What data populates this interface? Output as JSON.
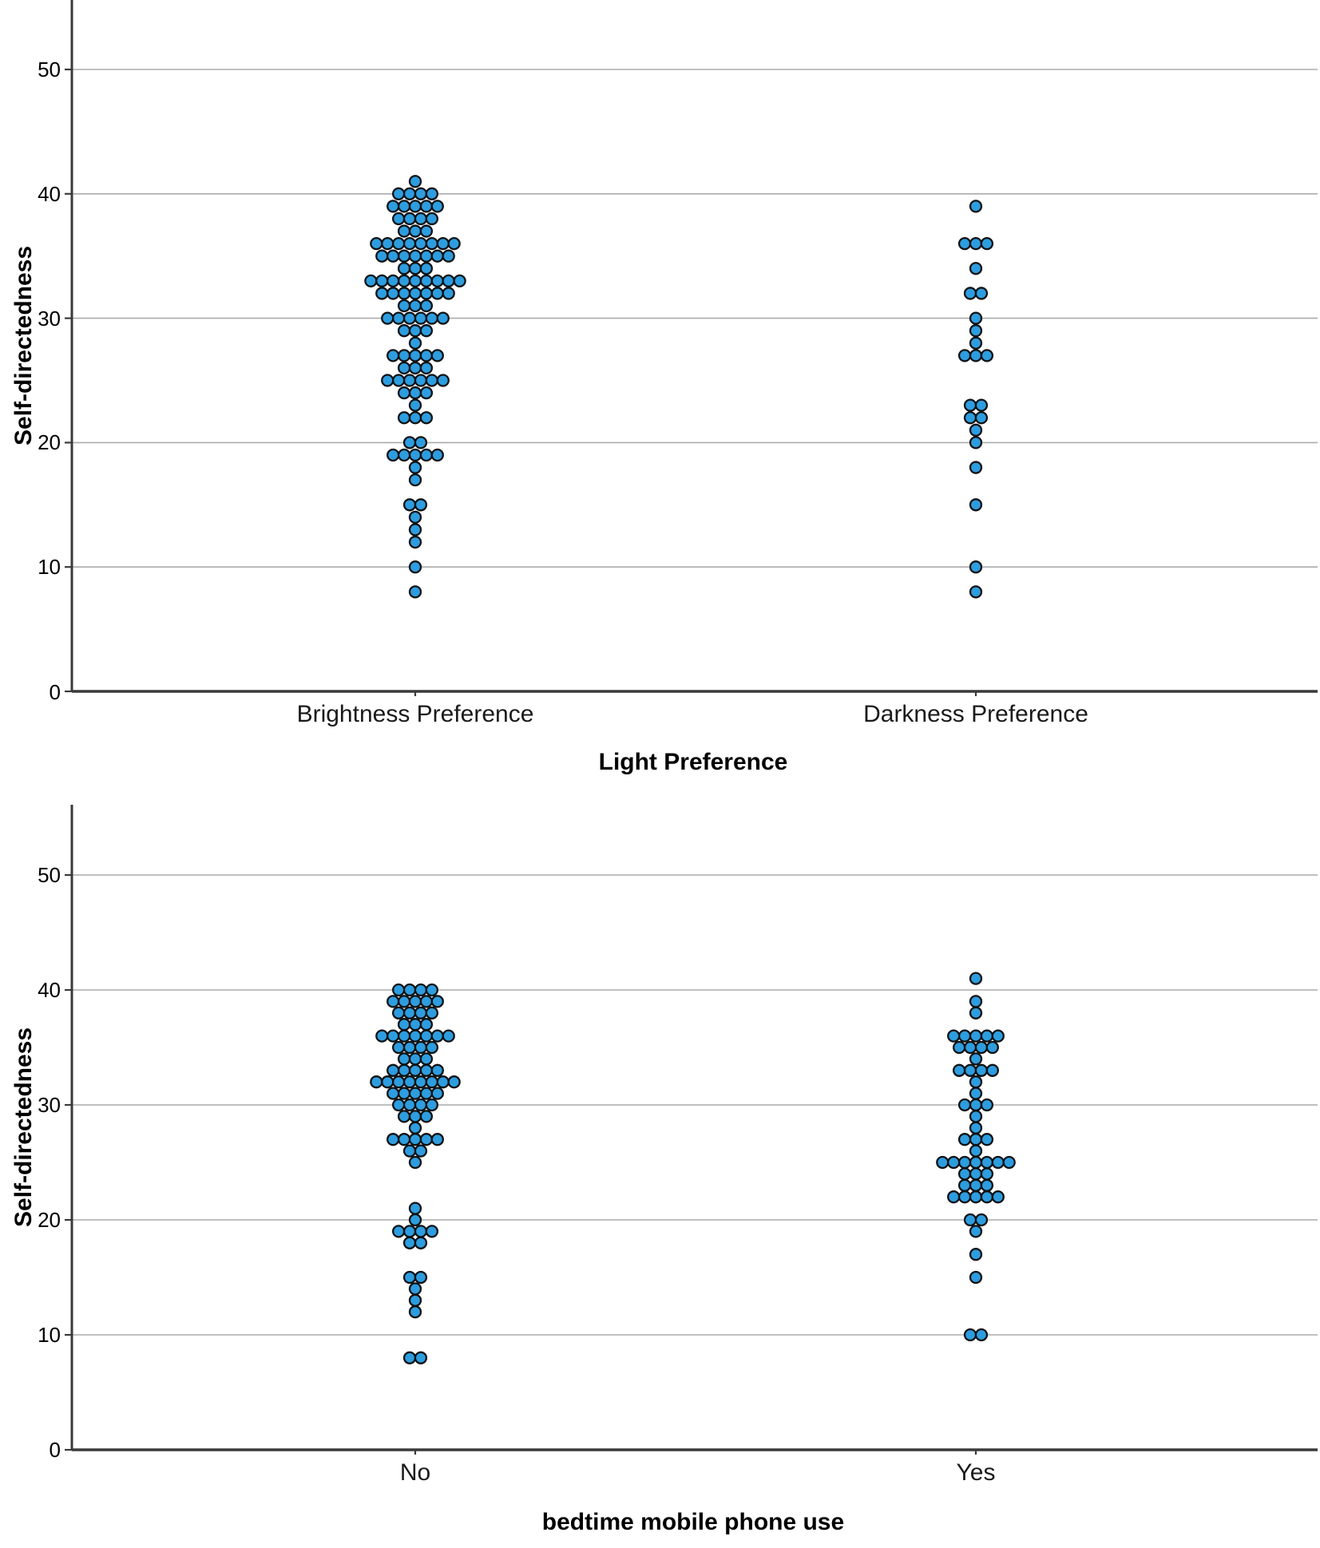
{
  "figure": {
    "background": "#ffffff",
    "dot_fill": "#2D9DDF",
    "dot_stroke": "#0f1214",
    "gridline_color": "#ababab",
    "axis_color": "#3a3a3a",
    "text_color": "#000000"
  },
  "chart_data": [
    {
      "type": "scatter",
      "subtype": "categorical-dot-plot",
      "title": "",
      "xlabel": "Light Preference",
      "ylabel": "Self-directedness",
      "ylim": [
        0,
        56
      ],
      "yticks": [
        0,
        10,
        20,
        30,
        40,
        50
      ],
      "grid": "horizontal",
      "legend": "none",
      "categories": [
        "Brightness Preference",
        "Darkness Preference"
      ],
      "series": [
        {
          "name": "Brightness Preference",
          "points": [
            {
              "value": 41,
              "count": 1
            },
            {
              "value": 40,
              "count": 4
            },
            {
              "value": 39,
              "count": 5
            },
            {
              "value": 38,
              "count": 4
            },
            {
              "value": 37,
              "count": 3
            },
            {
              "value": 36,
              "count": 8
            },
            {
              "value": 35,
              "count": 7
            },
            {
              "value": 34,
              "count": 3
            },
            {
              "value": 33,
              "count": 9
            },
            {
              "value": 32,
              "count": 7
            },
            {
              "value": 31,
              "count": 3
            },
            {
              "value": 30,
              "count": 6
            },
            {
              "value": 29,
              "count": 3
            },
            {
              "value": 28,
              "count": 1
            },
            {
              "value": 27,
              "count": 5
            },
            {
              "value": 26,
              "count": 3
            },
            {
              "value": 25,
              "count": 6
            },
            {
              "value": 24,
              "count": 3
            },
            {
              "value": 23,
              "count": 1
            },
            {
              "value": 22,
              "count": 3
            },
            {
              "value": 20,
              "count": 2
            },
            {
              "value": 19,
              "count": 5
            },
            {
              "value": 18,
              "count": 1
            },
            {
              "value": 17,
              "count": 1
            },
            {
              "value": 15,
              "count": 2
            },
            {
              "value": 14,
              "count": 1
            },
            {
              "value": 13,
              "count": 1
            },
            {
              "value": 12,
              "count": 1
            },
            {
              "value": 10,
              "count": 1
            },
            {
              "value": 8,
              "count": 1
            }
          ]
        },
        {
          "name": "Darkness Preference",
          "points": [
            {
              "value": 39,
              "count": 1
            },
            {
              "value": 36,
              "count": 3
            },
            {
              "value": 34,
              "count": 1
            },
            {
              "value": 32,
              "count": 2
            },
            {
              "value": 30,
              "count": 1
            },
            {
              "value": 29,
              "count": 1
            },
            {
              "value": 28,
              "count": 1
            },
            {
              "value": 27,
              "count": 3
            },
            {
              "value": 23,
              "count": 2
            },
            {
              "value": 22,
              "count": 2
            },
            {
              "value": 21,
              "count": 1
            },
            {
              "value": 20,
              "count": 1
            },
            {
              "value": 18,
              "count": 1
            },
            {
              "value": 15,
              "count": 1
            },
            {
              "value": 10,
              "count": 1
            },
            {
              "value": 8,
              "count": 1
            }
          ]
        }
      ]
    },
    {
      "type": "scatter",
      "subtype": "categorical-dot-plot",
      "title": "",
      "xlabel": "bedtime mobile phone use",
      "ylabel": "Self-directedness",
      "ylim": [
        0,
        56
      ],
      "yticks": [
        0,
        10,
        20,
        30,
        40,
        50
      ],
      "grid": "horizontal",
      "legend": "none",
      "categories": [
        "No",
        "Yes"
      ],
      "series": [
        {
          "name": "No",
          "points": [
            {
              "value": 40,
              "count": 4
            },
            {
              "value": 39,
              "count": 5
            },
            {
              "value": 38,
              "count": 4
            },
            {
              "value": 37,
              "count": 3
            },
            {
              "value": 36,
              "count": 7
            },
            {
              "value": 35,
              "count": 4
            },
            {
              "value": 34,
              "count": 3
            },
            {
              "value": 33,
              "count": 5
            },
            {
              "value": 32,
              "count": 8
            },
            {
              "value": 31,
              "count": 5
            },
            {
              "value": 30,
              "count": 4
            },
            {
              "value": 29,
              "count": 3
            },
            {
              "value": 28,
              "count": 1
            },
            {
              "value": 27,
              "count": 5
            },
            {
              "value": 26,
              "count": 2
            },
            {
              "value": 25,
              "count": 1
            },
            {
              "value": 21,
              "count": 1
            },
            {
              "value": 20,
              "count": 1
            },
            {
              "value": 19,
              "count": 4
            },
            {
              "value": 18,
              "count": 2
            },
            {
              "value": 15,
              "count": 2
            },
            {
              "value": 14,
              "count": 1
            },
            {
              "value": 13,
              "count": 1
            },
            {
              "value": 12,
              "count": 1
            },
            {
              "value": 8,
              "count": 2
            }
          ]
        },
        {
          "name": "Yes",
          "points": [
            {
              "value": 41,
              "count": 1
            },
            {
              "value": 39,
              "count": 1
            },
            {
              "value": 38,
              "count": 1
            },
            {
              "value": 36,
              "count": 5
            },
            {
              "value": 35,
              "count": 4
            },
            {
              "value": 34,
              "count": 1
            },
            {
              "value": 33,
              "count": 4
            },
            {
              "value": 32,
              "count": 1
            },
            {
              "value": 31,
              "count": 1
            },
            {
              "value": 30,
              "count": 3
            },
            {
              "value": 29,
              "count": 1
            },
            {
              "value": 28,
              "count": 1
            },
            {
              "value": 27,
              "count": 3
            },
            {
              "value": 26,
              "count": 1
            },
            {
              "value": 25,
              "count": 7
            },
            {
              "value": 24,
              "count": 3
            },
            {
              "value": 23,
              "count": 3
            },
            {
              "value": 22,
              "count": 5
            },
            {
              "value": 20,
              "count": 2
            },
            {
              "value": 19,
              "count": 1
            },
            {
              "value": 17,
              "count": 1
            },
            {
              "value": 15,
              "count": 1
            },
            {
              "value": 10,
              "count": 2
            }
          ]
        }
      ]
    }
  ]
}
